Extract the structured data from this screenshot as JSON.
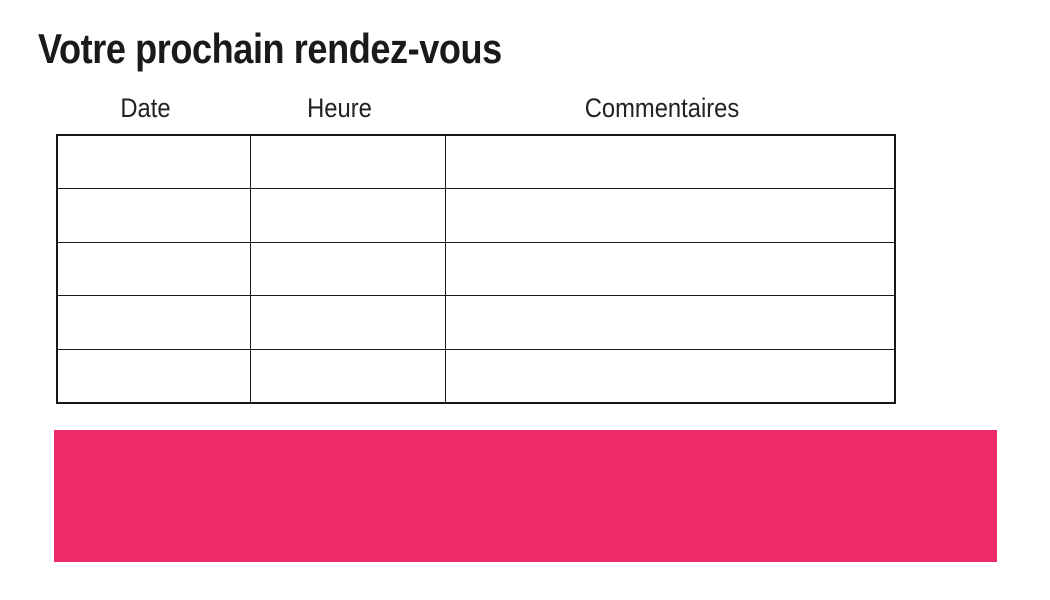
{
  "page": {
    "title": "Votre prochain rendez-vous"
  },
  "appointment_table": {
    "columns": [
      {
        "label": "Date"
      },
      {
        "label": "Heure"
      },
      {
        "label": "Commentaires"
      }
    ],
    "rows": [
      [
        "",
        "",
        ""
      ],
      [
        "",
        "",
        ""
      ],
      [
        "",
        "",
        ""
      ],
      [
        "",
        "",
        ""
      ],
      [
        "",
        "",
        ""
      ]
    ]
  },
  "colors": {
    "accent_pink": "#ee2a68",
    "table_border": "#1a1a1a",
    "title_text": "#1a1a1a"
  }
}
